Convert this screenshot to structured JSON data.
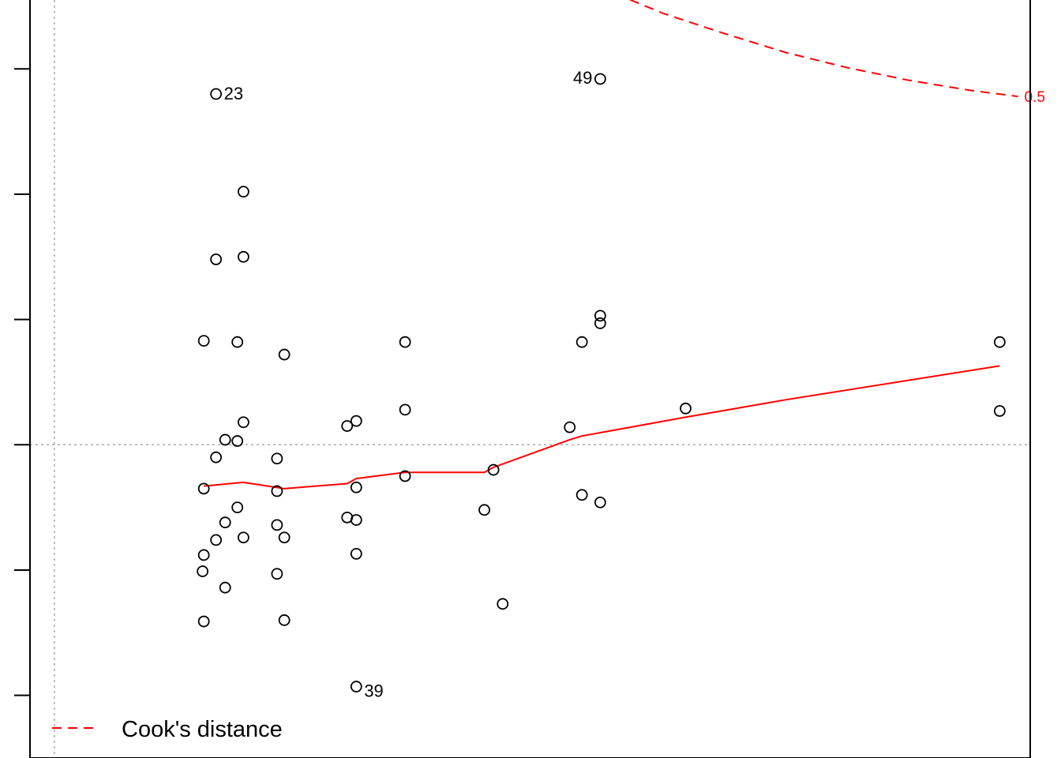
{
  "chart_data": {
    "type": "scatter",
    "title": "",
    "xlabel": "",
    "ylabel": "",
    "xlim": [
      -0.004,
      0.16
    ],
    "ylim": [
      -2.5,
      3.55
    ],
    "grid": false,
    "legend_position": "bottom-left",
    "legend": {
      "cooks_label": "Cook's distance"
    },
    "cooks_contour_label": "0.5",
    "colors": {
      "points": "#000000",
      "smoother": "#ff0000",
      "cooks": "#ff0000",
      "reference": "#aaaaaa"
    },
    "points": [
      {
        "x": 0.0265,
        "y": 2.8,
        "label": "23"
      },
      {
        "x": 0.0895,
        "y": 2.92,
        "label": "49"
      },
      {
        "x": 0.0495,
        "y": -1.93,
        "label": "39"
      },
      {
        "x": 0.031,
        "y": 2.02
      },
      {
        "x": 0.0265,
        "y": 1.48
      },
      {
        "x": 0.031,
        "y": 1.5
      },
      {
        "x": 0.0245,
        "y": 0.83
      },
      {
        "x": 0.03,
        "y": 0.82
      },
      {
        "x": 0.0377,
        "y": 0.72
      },
      {
        "x": 0.0575,
        "y": 0.82
      },
      {
        "x": 0.0865,
        "y": 0.82
      },
      {
        "x": 0.0895,
        "y": 1.03
      },
      {
        "x": 0.0895,
        "y": 0.97
      },
      {
        "x": 0.155,
        "y": 0.82
      },
      {
        "x": 0.031,
        "y": 0.18
      },
      {
        "x": 0.0495,
        "y": 0.19
      },
      {
        "x": 0.048,
        "y": 0.15
      },
      {
        "x": 0.0575,
        "y": 0.28
      },
      {
        "x": 0.028,
        "y": 0.04
      },
      {
        "x": 0.03,
        "y": 0.03
      },
      {
        "x": 0.0265,
        "y": -0.1
      },
      {
        "x": 0.0365,
        "y": -0.11
      },
      {
        "x": 0.0845,
        "y": 0.14
      },
      {
        "x": 0.1035,
        "y": 0.29
      },
      {
        "x": 0.155,
        "y": 0.27
      },
      {
        "x": 0.0245,
        "y": -0.35
      },
      {
        "x": 0.0365,
        "y": -0.37
      },
      {
        "x": 0.0495,
        "y": -0.34
      },
      {
        "x": 0.0575,
        "y": -0.25
      },
      {
        "x": 0.072,
        "y": -0.2
      },
      {
        "x": 0.03,
        "y": -0.5
      },
      {
        "x": 0.0705,
        "y": -0.52
      },
      {
        "x": 0.0865,
        "y": -0.4
      },
      {
        "x": 0.0895,
        "y": -0.46
      },
      {
        "x": 0.048,
        "y": -0.58
      },
      {
        "x": 0.0495,
        "y": -0.6
      },
      {
        "x": 0.028,
        "y": -0.62
      },
      {
        "x": 0.0365,
        "y": -0.64
      },
      {
        "x": 0.0265,
        "y": -0.76
      },
      {
        "x": 0.031,
        "y": -0.74
      },
      {
        "x": 0.0377,
        "y": -0.74
      },
      {
        "x": 0.0245,
        "y": -0.88
      },
      {
        "x": 0.0495,
        "y": -0.87
      },
      {
        "x": 0.0243,
        "y": -1.01
      },
      {
        "x": 0.028,
        "y": -1.14
      },
      {
        "x": 0.0365,
        "y": -1.03
      },
      {
        "x": 0.0735,
        "y": -1.27
      },
      {
        "x": 0.0245,
        "y": -1.41
      },
      {
        "x": 0.0377,
        "y": -1.4
      }
    ],
    "smoother": [
      {
        "x": 0.0245,
        "y": -0.33
      },
      {
        "x": 0.031,
        "y": -0.3
      },
      {
        "x": 0.0377,
        "y": -0.35
      },
      {
        "x": 0.048,
        "y": -0.31
      },
      {
        "x": 0.0495,
        "y": -0.27
      },
      {
        "x": 0.0575,
        "y": -0.22
      },
      {
        "x": 0.0705,
        "y": -0.22
      },
      {
        "x": 0.072,
        "y": -0.18
      },
      {
        "x": 0.0845,
        "y": 0.04
      },
      {
        "x": 0.0865,
        "y": 0.07
      },
      {
        "x": 0.1035,
        "y": 0.22
      },
      {
        "x": 0.12,
        "y": 0.36
      },
      {
        "x": 0.155,
        "y": 0.63
      }
    ],
    "cooks_curve": [
      {
        "x": 0.092,
        "y": 3.6
      },
      {
        "x": 0.1,
        "y": 3.44
      },
      {
        "x": 0.11,
        "y": 3.28
      },
      {
        "x": 0.12,
        "y": 3.13
      },
      {
        "x": 0.13,
        "y": 3.01
      },
      {
        "x": 0.14,
        "y": 2.91
      },
      {
        "x": 0.15,
        "y": 2.83
      },
      {
        "x": 0.158,
        "y": 2.78
      }
    ]
  }
}
